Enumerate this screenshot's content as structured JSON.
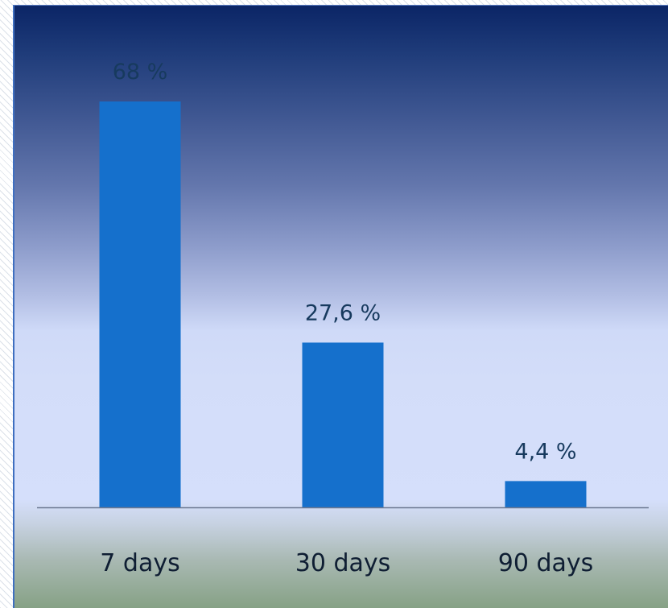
{
  "chart_data": {
    "type": "bar",
    "categories": [
      "7 days",
      "30 days",
      "90 days"
    ],
    "values": [
      68,
      27.6,
      4.4
    ],
    "value_labels": [
      "68 %",
      "27,6 %",
      "4,4 %"
    ],
    "title": "",
    "xlabel": "",
    "ylabel": "",
    "ylim": [
      0,
      68
    ],
    "grid": false,
    "legend": "none",
    "colors": {
      "bar": "#1570cc",
      "value_label": "#173a5e",
      "category_label": "#0f1e33",
      "axis": "#6b7891"
    }
  }
}
